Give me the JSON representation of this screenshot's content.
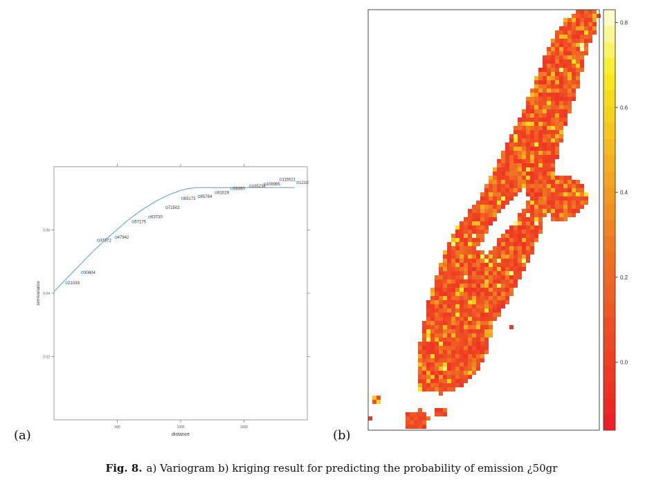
{
  "panel_labels": {
    "a": "(a)",
    "b": "(b)"
  },
  "caption": {
    "prefix": "Fig. 8.",
    "text": "a) Variogram b) kriging result for predicting the probability of emission ¿50gr"
  },
  "chart_data": [
    {
      "type": "scatter",
      "title": "",
      "xlabel": "distance",
      "ylabel": "semivariance",
      "xlim": [
        0,
        2000
      ],
      "ylim": [
        0.0,
        0.08
      ],
      "xticks": [
        500,
        1000,
        1500
      ],
      "yticks": [
        0.02,
        0.04,
        0.06
      ],
      "points": [
        {
          "x": 100,
          "y": 0.0433,
          "label": "21039"
        },
        {
          "x": 225,
          "y": 0.0466,
          "label": "30604"
        },
        {
          "x": 350,
          "y": 0.0567,
          "label": "37372"
        },
        {
          "x": 490,
          "y": 0.0577,
          "label": "47942"
        },
        {
          "x": 625,
          "y": 0.0626,
          "label": "57175"
        },
        {
          "x": 755,
          "y": 0.0641,
          "label": "63730"
        },
        {
          "x": 890,
          "y": 0.0671,
          "label": "71502"
        },
        {
          "x": 1015,
          "y": 0.07,
          "label": "83173"
        },
        {
          "x": 1145,
          "y": 0.0706,
          "label": "85784"
        },
        {
          "x": 1280,
          "y": 0.0718,
          "label": "91029"
        },
        {
          "x": 1405,
          "y": 0.0731,
          "label": "98360"
        },
        {
          "x": 1550,
          "y": 0.0739,
          "label": "105236"
        },
        {
          "x": 1665,
          "y": 0.0745,
          "label": "108985"
        },
        {
          "x": 1790,
          "y": 0.076,
          "label": "115521"
        },
        {
          "x": 1925,
          "y": 0.075,
          "label": "1210"
        }
      ],
      "model_curve": {
        "color": "#4f9be8",
        "x": [
          0,
          100,
          200,
          300,
          400,
          500,
          600,
          700,
          800,
          900,
          1000,
          1050,
          1100,
          1130,
          1200,
          1400,
          1600,
          1800,
          1900
        ],
        "y": [
          0.0405,
          0.0447,
          0.0488,
          0.0529,
          0.0567,
          0.0602,
          0.0636,
          0.0665,
          0.069,
          0.071,
          0.0725,
          0.073,
          0.0733,
          0.0734,
          0.0734,
          0.0734,
          0.0734,
          0.0734,
          0.0734
        ]
      }
    },
    {
      "type": "heatmap",
      "title": "",
      "colorbar": {
        "ticks": [
          "0.0",
          "0.2",
          "0.4",
          "0.6",
          "0.8"
        ],
        "tick_values": [
          0.0,
          0.2,
          0.4,
          0.6,
          0.8
        ],
        "range": [
          -0.16,
          0.83
        ],
        "color_low": "#ee1c25",
        "color_mid": "#f07a22",
        "color_high": "#fefde0"
      },
      "description_regions": "prediction surface over an island-shaped area; values mostly 0.0-0.3 (red/orange) with scattered yellow cells"
    }
  ]
}
